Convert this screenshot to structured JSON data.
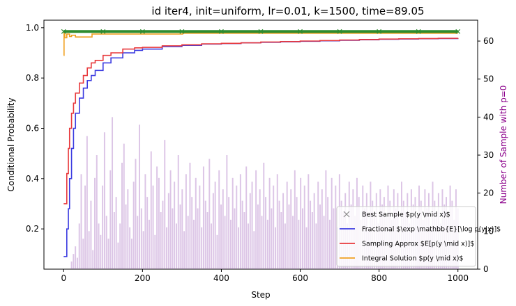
{
  "chart_data": {
    "type": "line",
    "title": "id iter4, init=uniform, lr=0.01, k=1500, time=89.05",
    "xlabel": "Step",
    "ylabel": "Conditional Probability",
    "y2label": "Number of Sample with p=0",
    "xlim": [
      -50,
      1050
    ],
    "ylim": [
      0.04,
      1.03
    ],
    "y2lim": [
      0,
      65.5
    ],
    "xticks": [
      "0",
      "200",
      "400",
      "600",
      "800",
      "1000"
    ],
    "yticks": [
      "0.2",
      "0.4",
      "0.6",
      "0.8",
      "1.0"
    ],
    "y2ticks": [
      "0",
      "10",
      "20",
      "30",
      "40",
      "50",
      "60"
    ],
    "legend_position": "lower right",
    "colors": {
      "fractional": "#3a3ae0",
      "sampling": "#e8383b",
      "integral": "#f0a020",
      "best": "#2e8b2e",
      "bars": "#9b59b6",
      "y2axis": "#8b008b"
    },
    "series": [
      {
        "name": "Best Sample $p(y \\mid x)$",
        "key": "best",
        "style": "marker-x",
        "x": [
          0,
          100,
          200,
          300,
          400,
          500,
          600,
          700,
          800,
          900,
          1000
        ],
        "y": [
          0.985,
          0.985,
          0.985,
          0.985,
          0.985,
          0.985,
          0.985,
          0.985,
          0.985,
          0.985,
          0.985
        ]
      },
      {
        "name": "Fractional $\\exp \\mathbb{E}[\\log p(y|x)]$",
        "key": "fractional",
        "x": [
          0,
          5,
          8,
          12,
          15,
          20,
          25,
          30,
          40,
          50,
          60,
          70,
          80,
          100,
          120,
          150,
          180,
          200,
          250,
          300,
          350,
          400,
          450,
          500,
          550,
          600,
          650,
          700,
          750,
          800,
          850,
          900,
          950,
          1000
        ],
        "y": [
          0.09,
          0.09,
          0.2,
          0.28,
          0.4,
          0.52,
          0.6,
          0.66,
          0.72,
          0.76,
          0.79,
          0.81,
          0.83,
          0.86,
          0.88,
          0.9,
          0.91,
          0.915,
          0.925,
          0.93,
          0.935,
          0.937,
          0.94,
          0.942,
          0.944,
          0.946,
          0.948,
          0.95,
          0.952,
          0.954,
          0.955,
          0.956,
          0.957,
          0.958
        ]
      },
      {
        "name": "Sampling Approx $E[p(y \\mid x)]$",
        "key": "sampling",
        "x": [
          0,
          5,
          8,
          12,
          15,
          20,
          25,
          30,
          40,
          50,
          60,
          70,
          80,
          100,
          120,
          150,
          180,
          200,
          250,
          300,
          350,
          400,
          450,
          500,
          550,
          600,
          650,
          700,
          750,
          800,
          850,
          900,
          950,
          1000
        ],
        "y": [
          0.3,
          0.3,
          0.42,
          0.52,
          0.6,
          0.66,
          0.7,
          0.74,
          0.78,
          0.81,
          0.84,
          0.86,
          0.87,
          0.89,
          0.9,
          0.915,
          0.92,
          0.922,
          0.928,
          0.932,
          0.936,
          0.938,
          0.94,
          0.943,
          0.945,
          0.947,
          0.949,
          0.951,
          0.953,
          0.955,
          0.956,
          0.957,
          0.958,
          0.959
        ]
      },
      {
        "name": "Integral Solution $p(y \\mid x)$",
        "key": "integral",
        "x": [
          0,
          1,
          3,
          8,
          15,
          20,
          30,
          50,
          70,
          72,
          300,
          302,
          1000
        ],
        "y": [
          0.89,
          0.98,
          0.96,
          0.975,
          0.965,
          0.97,
          0.963,
          0.963,
          0.963,
          0.975,
          0.975,
          0.978,
          0.978
        ]
      }
    ],
    "bar_series": {
      "name": "Number of Sample with p=0",
      "axis": "right",
      "x_start": 20,
      "x_end": 1000,
      "values": [
        2,
        4,
        6,
        3,
        12,
        25,
        8,
        22,
        35,
        10,
        18,
        5,
        24,
        30,
        12,
        9,
        22,
        36,
        14,
        8,
        26,
        40,
        15,
        19,
        7,
        12,
        28,
        33,
        17,
        21,
        11,
        8,
        23,
        29,
        14,
        38,
        16,
        10,
        25,
        19,
        13,
        31,
        22,
        9,
        27,
        24,
        15,
        18,
        34,
        11,
        20,
        26,
        16,
        23,
        12,
        30,
        17,
        21,
        10,
        25,
        14,
        28,
        19,
        13,
        24,
        16,
        22,
        11,
        27,
        18,
        15,
        29,
        12,
        20,
        23,
        9,
        26,
        17,
        21,
        14,
        30,
        19,
        13,
        24,
        16,
        22,
        11,
        25,
        18,
        15,
        27,
        12,
        20,
        23,
        10,
        26,
        17,
        21,
        14,
        28,
        19,
        13,
        24,
        16,
        22,
        11,
        25,
        18,
        15,
        20,
        12,
        23,
        17,
        21,
        14,
        26,
        19,
        13,
        24,
        16,
        22,
        11,
        25,
        18,
        15,
        20,
        12,
        23,
        17,
        21,
        14,
        26,
        19,
        13,
        24,
        16,
        22,
        11,
        25,
        18,
        15,
        20,
        12,
        23,
        17,
        21,
        14,
        24,
        19,
        13,
        22,
        16,
        20,
        11,
        23,
        18,
        15,
        20,
        12,
        21,
        17,
        19,
        14,
        22,
        18,
        13,
        21,
        16,
        20,
        11,
        23,
        18,
        15,
        20,
        12,
        21,
        17,
        19,
        14,
        22,
        18,
        13,
        21,
        16,
        20,
        11,
        23,
        18,
        15,
        20,
        12,
        21,
        17,
        19,
        14,
        22,
        18,
        13,
        21,
        16
      ]
    }
  }
}
